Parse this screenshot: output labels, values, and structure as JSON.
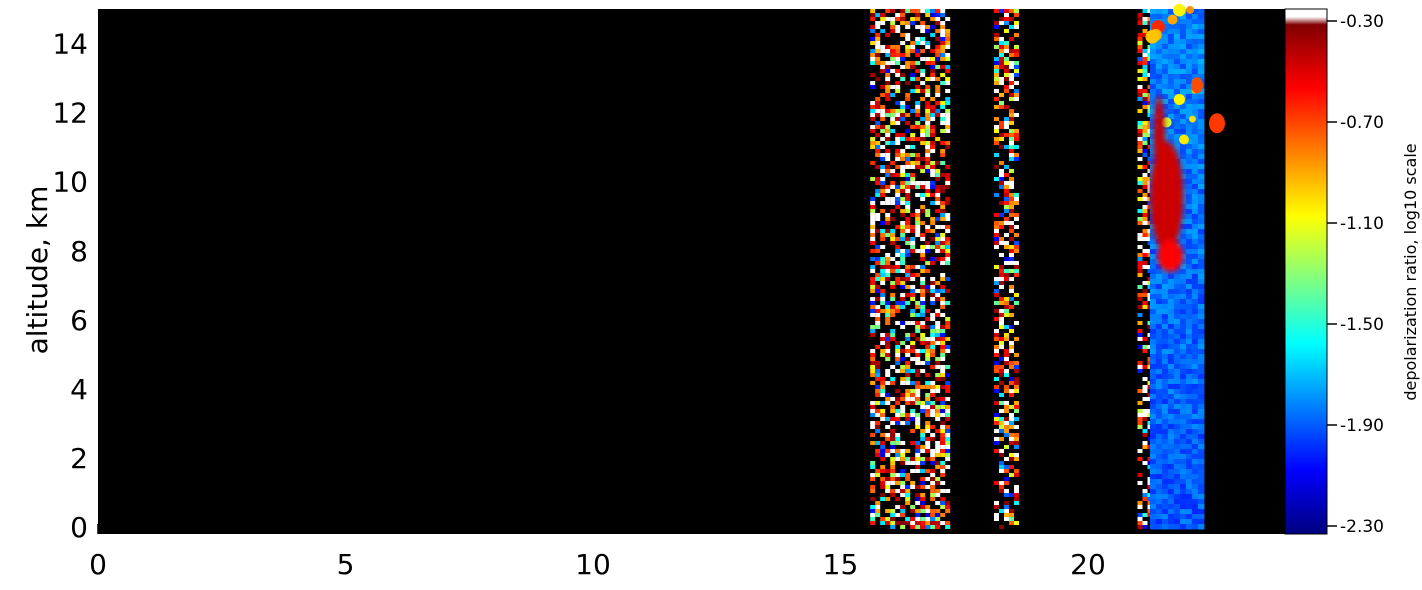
{
  "chart_data": {
    "type": "heatmap",
    "title": "",
    "xlabel": "",
    "ylabel": "altitude,  km",
    "xlim": [
      0,
      24
    ],
    "ylim": [
      -0.2,
      15
    ],
    "x_ticks": [
      0,
      5,
      10,
      15,
      20
    ],
    "y_ticks": [
      0,
      2,
      4,
      6,
      8,
      10,
      12,
      14
    ],
    "background_color": "#000000",
    "colorbar": {
      "label": "depolarization  ratio,  log10  scale",
      "ticks": [
        "-0.30",
        "-0.70",
        "-1.10",
        "-1.50",
        "-1.90",
        "-2.30"
      ],
      "range": [
        -2.3,
        -0.3
      ],
      "colors": [
        "#000080",
        "#0000ff",
        "#0080ff",
        "#00ffff",
        "#80ff80",
        "#ffff00",
        "#ff8000",
        "#ff0000",
        "#800000"
      ],
      "top_color": "#ffffff"
    },
    "data_regions": [
      {
        "name": "noise",
        "x_start": 15.6,
        "x_end": 17.2,
        "y_start": 0,
        "y_end": 15
      },
      {
        "name": "noise",
        "x_start": 18.1,
        "x_end": 18.6,
        "y_start": 0,
        "y_end": 15
      },
      {
        "name": "noise",
        "x_start": 21.0,
        "x_end": 21.25,
        "y_start": 0,
        "y_end": 15
      },
      {
        "name": "blue-layer",
        "x_start": 21.25,
        "x_end": 22.25,
        "y_start": 0,
        "y_end": 15,
        "log10_value": -1.8
      },
      {
        "name": "ice-cloud",
        "x_start": 21.25,
        "x_end": 22.0,
        "y_start": 7.5,
        "y_end": 12.5,
        "log10_value": -0.45
      }
    ]
  }
}
